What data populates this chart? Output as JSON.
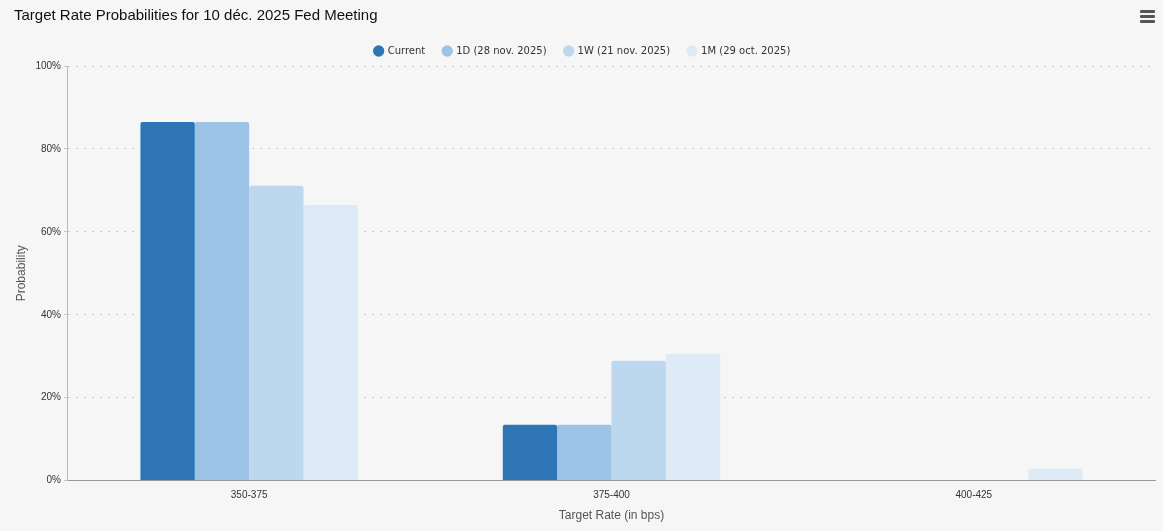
{
  "chart_data": {
    "type": "bar",
    "title": "Target Rate Probabilities for 10 déc. 2025 Fed Meeting",
    "xlabel": "Target Rate (in bps)",
    "ylabel": "Probability",
    "categories": [
      "350-375",
      "375-400",
      "400-425"
    ],
    "series": [
      {
        "name": "Current",
        "color": "#2e75b6",
        "values": [
          86.5,
          13.5,
          0
        ]
      },
      {
        "name": "1D (28 nov. 2025)",
        "color": "#9dc3e6",
        "values": [
          86.5,
          13.5,
          0
        ]
      },
      {
        "name": "1W (21 nov. 2025)",
        "color": "#bdd7ee",
        "values": [
          71.1,
          28.9,
          0
        ]
      },
      {
        "name": "1M (29 oct. 2025)",
        "color": "#deebf7",
        "values": [
          66.5,
          30.6,
          2.9
        ]
      }
    ],
    "ylim": [
      0,
      100
    ],
    "yticks": [
      {
        "value": 0,
        "label": "0%"
      },
      {
        "value": 20,
        "label": "20%"
      },
      {
        "value": 40,
        "label": "40%"
      },
      {
        "value": 60,
        "label": "60%"
      },
      {
        "value": 80,
        "label": "80%"
      },
      {
        "value": 100,
        "label": "100%"
      }
    ],
    "grid": "y",
    "legend": "top"
  }
}
